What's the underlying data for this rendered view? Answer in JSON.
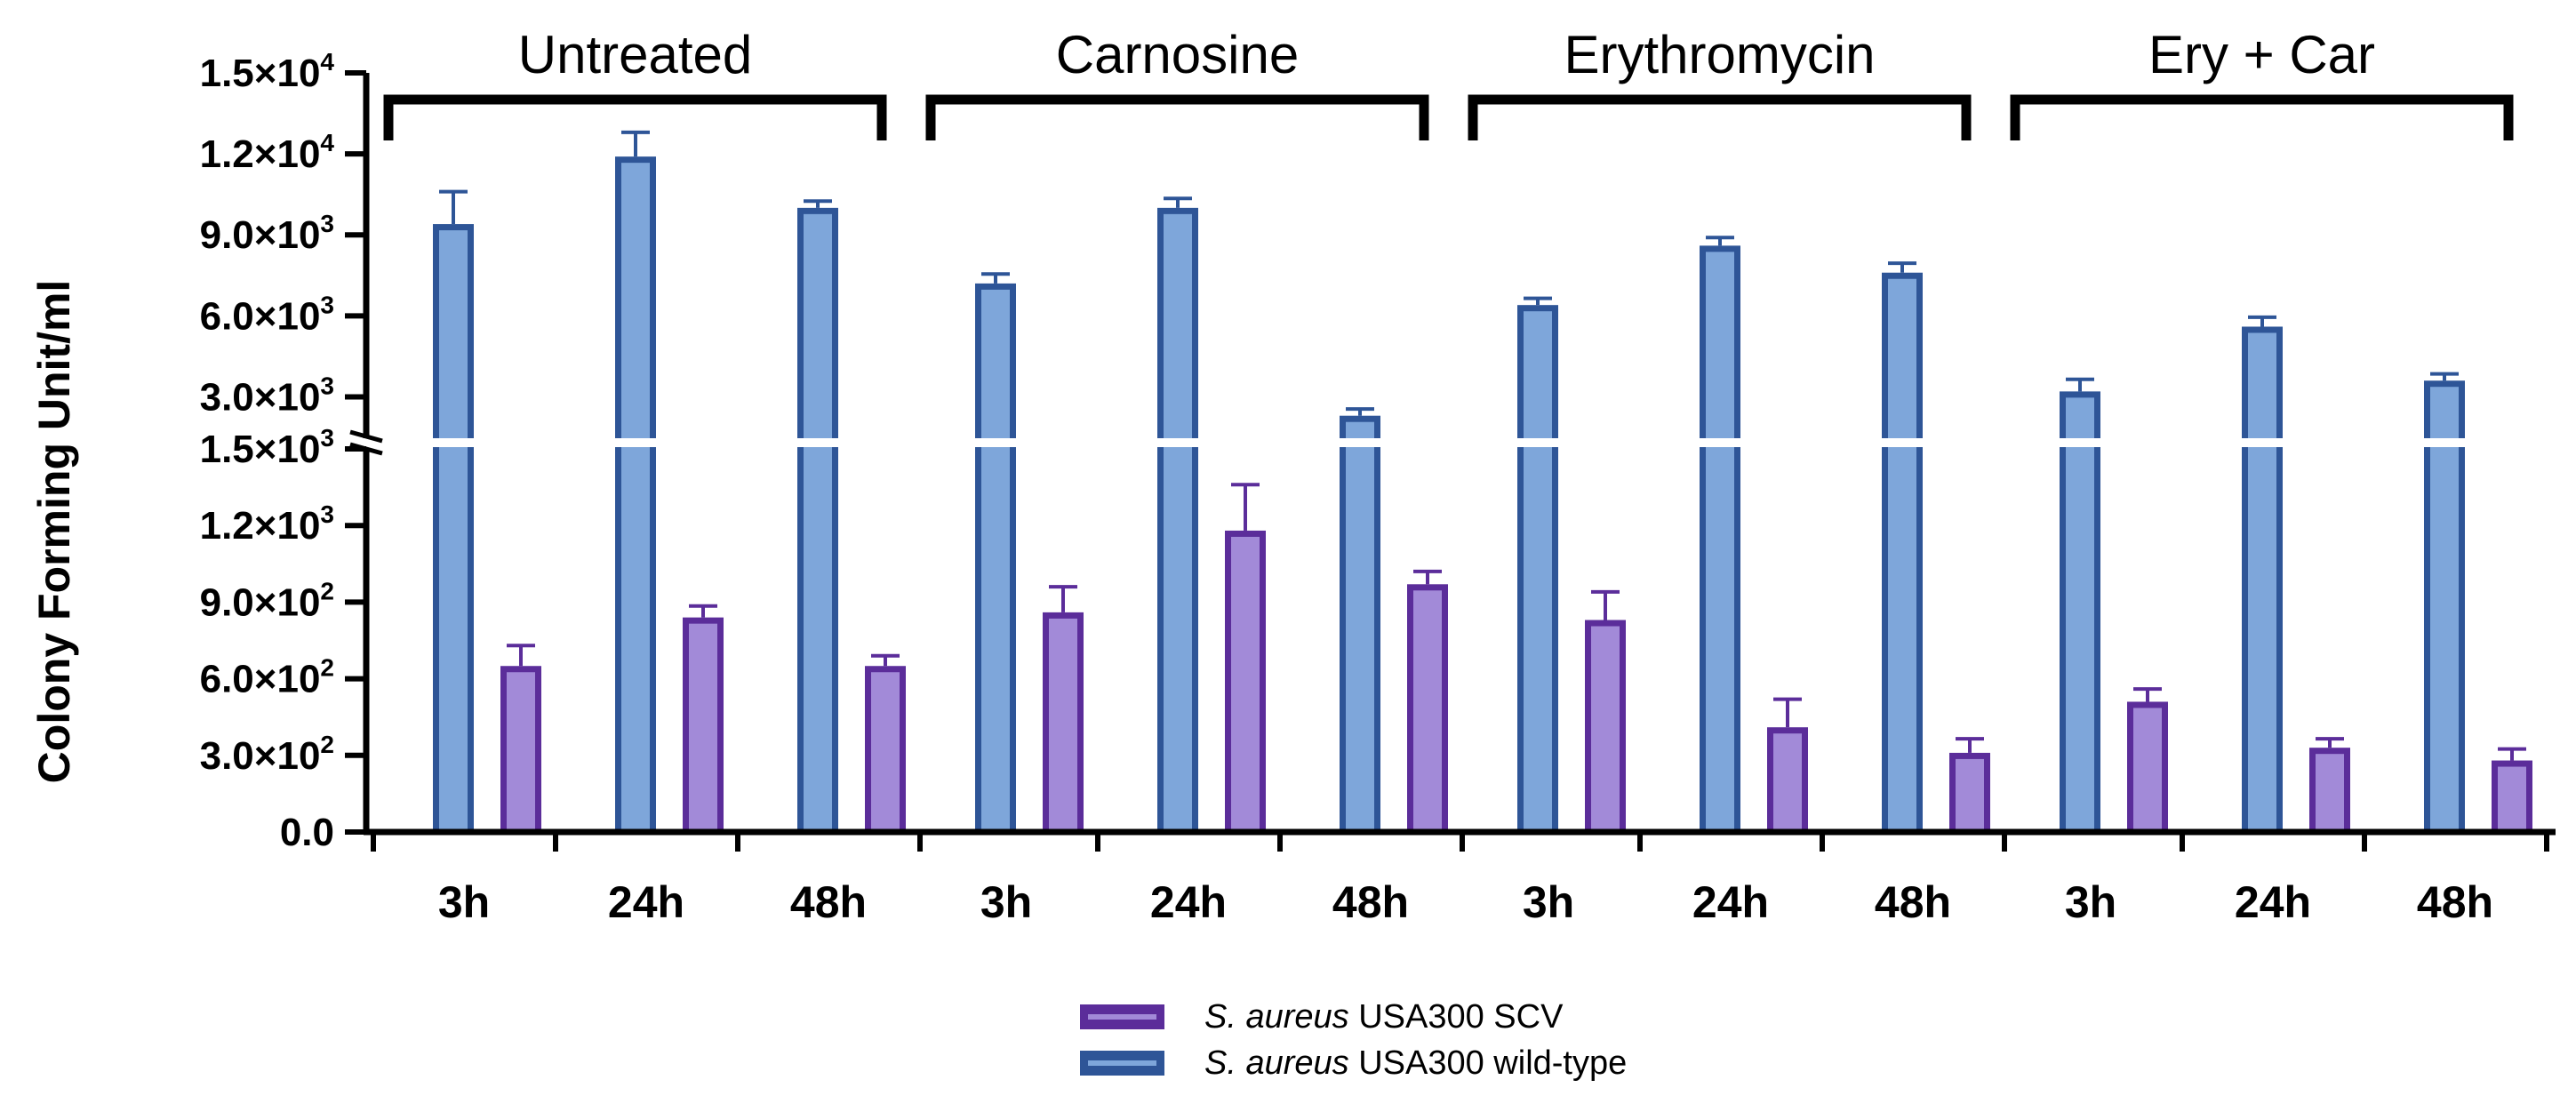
{
  "chart_data": {
    "type": "bar",
    "ylabel": "Colony Forming  Unit/ml",
    "groups": [
      "Untreated",
      "Carnosine",
      "Erythromycin",
      "Ery + Car"
    ],
    "timepoints": [
      "3h",
      "24h",
      "48h"
    ],
    "categories": [
      "3h",
      "24h",
      "48h",
      "3h",
      "24h",
      "48h",
      "3h",
      "24h",
      "48h",
      "3h",
      "24h",
      "48h"
    ],
    "y_axis_broken": true,
    "lower_segment": {
      "ylim": [
        0,
        1500
      ],
      "ticks": [
        {
          "value": 0,
          "mantissa": "0.0",
          "exp": ""
        },
        {
          "value": 300,
          "mantissa": "3.0×10",
          "exp": "2"
        },
        {
          "value": 600,
          "mantissa": "6.0×10",
          "exp": "2"
        },
        {
          "value": 900,
          "mantissa": "9.0×10",
          "exp": "2"
        },
        {
          "value": 1200,
          "mantissa": "1.2×10",
          "exp": "3"
        },
        {
          "value": 1500,
          "mantissa": "1.5×10",
          "exp": "3"
        }
      ]
    },
    "upper_segment": {
      "ylim": [
        1500,
        15000
      ],
      "ticks": [
        {
          "value": 3000,
          "mantissa": "3.0×10",
          "exp": "3"
        },
        {
          "value": 6000,
          "mantissa": "6.0×10",
          "exp": "3"
        },
        {
          "value": 9000,
          "mantissa": "9.0×10",
          "exp": "3"
        },
        {
          "value": 12000,
          "mantissa": "1.2×10",
          "exp": "4"
        },
        {
          "value": 15000,
          "mantissa": "1.5×10",
          "exp": "4"
        }
      ]
    },
    "series": [
      {
        "name": "S. aureus USA300 wild-type",
        "name_italic": "S. aureus",
        "name_rest": " USA300 wild-type",
        "edge_color": "#2E5597",
        "fill_color": "#7EA6DA",
        "values": [
          9400,
          11900,
          10000,
          7200,
          10000,
          2300,
          6400,
          8600,
          7600,
          3200,
          5600,
          3600
        ],
        "errors": [
          1200,
          900,
          250,
          350,
          350,
          250,
          250,
          300,
          350,
          450,
          350,
          250
        ]
      },
      {
        "name": "S. aureus USA300 SCV",
        "name_italic": "S. aureus",
        "name_rest": " USA300 SCV",
        "edge_color": "#5B2D9A",
        "fill_color": "#A28AD8",
        "values": [
          650,
          840,
          650,
          860,
          1180,
          970,
          830,
          410,
          310,
          510,
          330,
          280
        ],
        "errors": [
          80,
          45,
          40,
          100,
          180,
          50,
          110,
          110,
          55,
          50,
          35,
          45
        ]
      }
    ],
    "legend_position": "bottom-center"
  }
}
